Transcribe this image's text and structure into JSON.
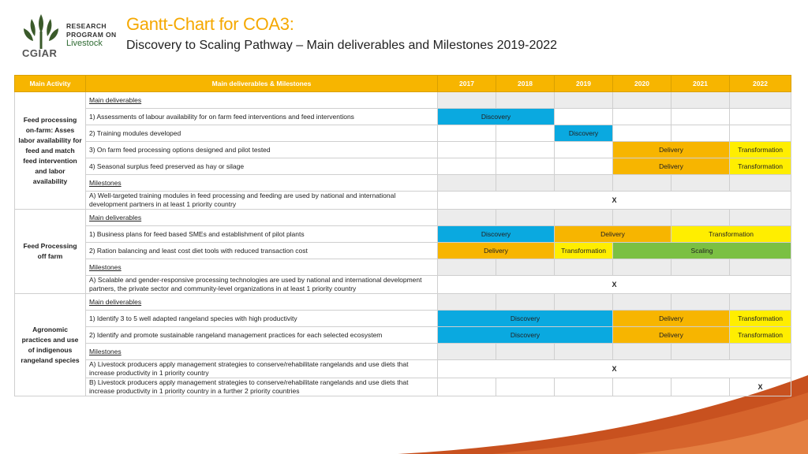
{
  "logo": {
    "line1": "RESEARCH",
    "line2": "PROGRAM ON",
    "brand": "Livestock",
    "org": "CGIAR"
  },
  "title": "Gantt-Chart for COA3:",
  "subtitle": "Discovery to Scaling Pathway – Main deliverables and Milestones 2019-2022",
  "colors": {
    "discovery": "#0aa9e0",
    "delivery": "#f7b500",
    "transformation": "#ffee00",
    "scaling": "#7bc043",
    "header": "#f7b500"
  },
  "header": {
    "activity": "Main Activity",
    "deliverables": "Main deliverables & Milestones",
    "years": [
      "2017",
      "2018",
      "2019",
      "2020",
      "2021",
      "2022"
    ]
  },
  "groups": [
    {
      "activity": "Feed processing on-farm: Asses labor availability for feed and match feed intervention and labor availability",
      "main_deliverables": "Main deliverables",
      "milestones": "Milestones",
      "deliverables": [
        {
          "text": "1) Assessments of labour availability for on farm feed interventions and feed interventions",
          "phases": [
            "Discovery"
          ]
        },
        {
          "text": "2) Training modules developed",
          "phases": [
            "Discovery"
          ]
        },
        {
          "text": "3) On farm feed processing options designed and pilot tested",
          "phases": [
            "Delivery",
            "Transformation"
          ]
        },
        {
          "text": "4) Seasonal surplus feed preserved as hay or silage",
          "phases": [
            "Delivery",
            "Transformation"
          ]
        }
      ],
      "milestone_items": [
        {
          "text": "A) Well-targeted training modules in feed processing and feeding are used by national and international development partners in at least 1 priority country",
          "mark": "X"
        }
      ]
    },
    {
      "activity": "Feed Processing off farm",
      "main_deliverables": "Main deliverables",
      "milestones": "Milestones",
      "deliverables": [
        {
          "text": "1) Business plans for feed based SMEs and establishment of pilot plants",
          "phases": [
            "Discovery",
            "Delivery",
            "Transformation"
          ]
        },
        {
          "text": "2) Ration balancing and least cost diet tools with reduced transaction cost",
          "phases": [
            "Delivery",
            "Transformation",
            "Scaling"
          ]
        }
      ],
      "milestone_items": [
        {
          "text": "A) Scalable and gender-responsive processing technologies are used by national and international development partners, the private sector and community-level organizations in at least 1 priority country",
          "mark": "X"
        }
      ]
    },
    {
      "activity": "Agronomic practices and use of indigenous rangeland species",
      "main_deliverables": "Main deliverables",
      "milestones": "Milestones",
      "deliverables": [
        {
          "text": "1) Identify 3 to 5 well adapted rangeland species with high productivity",
          "phases": [
            "Discovery",
            "Delivery",
            "Transformation"
          ]
        },
        {
          "text": "2) Identify and promote sustainable rangeland management practices for each selected ecosystem",
          "phases": [
            "Discovery",
            "Delivery",
            "Transformation"
          ]
        }
      ],
      "milestone_items": [
        {
          "text": "A) Livestock producers apply management strategies to conserve/rehabilitate rangelands and use diets that increase productivity in 1 priority country",
          "mark": "X"
        },
        {
          "text": "B) Livestock producers apply management strategies to conserve/rehabilitate rangelands and use diets that increase productivity in 1 priority country in a further 2 priority countries",
          "mark": "X"
        }
      ]
    }
  ]
}
